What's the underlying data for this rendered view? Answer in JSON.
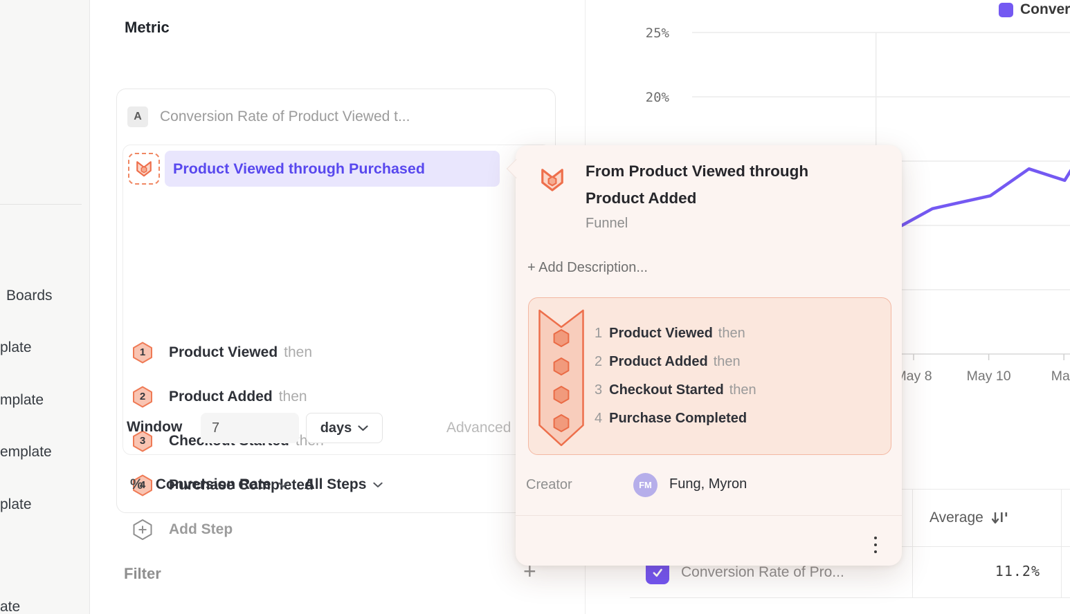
{
  "colors": {
    "accent_purple": "#7459f2",
    "accent_purple_text": "#5848ee",
    "salmon": "#ee7350",
    "salmon_fill": "#f9c4b2",
    "popover_bg": "#fcf4f1"
  },
  "sidebar": {
    "items": [
      {
        "label": "Boards"
      },
      {
        "label": "plate"
      },
      {
        "label": "mplate"
      },
      {
        "label": "emplate"
      },
      {
        "label": "plate"
      }
    ],
    "cut_item": "ate"
  },
  "metric": {
    "title": "Metric",
    "series": {
      "badge": "A",
      "title": "Conversion Rate of Product Viewed t..."
    },
    "selected_step_label": "Product Viewed through Purchased",
    "steps": [
      {
        "num": "1",
        "name": "Product Viewed",
        "connector": "then"
      },
      {
        "num": "2",
        "name": "Product Added",
        "connector": "then"
      },
      {
        "num": "3",
        "name": "Checkout Started",
        "connector": "then"
      },
      {
        "num": "4",
        "name": "Purchase Completed",
        "connector": ""
      }
    ],
    "add_step": "Add Step",
    "window": {
      "label": "Window",
      "value": "7",
      "unit": "days",
      "advanced": "Advanced"
    },
    "measure": {
      "percent": "%",
      "rate_label": "Conversion Rate",
      "steps_label": "All Steps"
    },
    "filter": {
      "label": "Filter",
      "add_icon": "+"
    }
  },
  "popover": {
    "title": "From Product Viewed through Product Added",
    "type": "Funnel",
    "add_description": "+ Add Description...",
    "steps": [
      {
        "num": "1",
        "name": "Product Viewed",
        "connector": "then"
      },
      {
        "num": "2",
        "name": "Product Added",
        "connector": "then"
      },
      {
        "num": "3",
        "name": "Checkout Started",
        "connector": "then"
      },
      {
        "num": "4",
        "name": "Purchase Completed",
        "connector": ""
      }
    ],
    "creator_label": "Creator",
    "creator": {
      "initials": "FM",
      "name": "Fung, Myron"
    }
  },
  "chart_data": {
    "type": "line",
    "legend": [
      {
        "label": "Conver",
        "color": "#7459f2"
      }
    ],
    "y_axis": {
      "unit": "%",
      "ticks": [
        25,
        20,
        15,
        10,
        5,
        0
      ],
      "visible_tick_labels": [
        "25%",
        "20%"
      ],
      "grid": true
    },
    "x_axis": {
      "tick_days": [
        8,
        10,
        12
      ],
      "tick_labels": [
        "May 8",
        "May 10",
        "May"
      ],
      "vertical_gridline_day": 7
    },
    "series": [
      {
        "name": "Conversion Rate of Pro...",
        "color": "#7459f2",
        "points": [
          {
            "day": 7.69,
            "value": 10.0
          },
          {
            "day": 8.5,
            "value": 11.3
          },
          {
            "day": 8.96,
            "value": 11.6
          },
          {
            "day": 10.04,
            "value": 12.3
          },
          {
            "day": 11.07,
            "value": 14.4
          },
          {
            "day": 12.02,
            "value": 13.5
          },
          {
            "day": 12.19,
            "value": 14.3
          }
        ]
      }
    ]
  },
  "table": {
    "header_average": "Average",
    "row": {
      "label": "Conversion Rate of Pro...",
      "value": "11.2%"
    }
  }
}
